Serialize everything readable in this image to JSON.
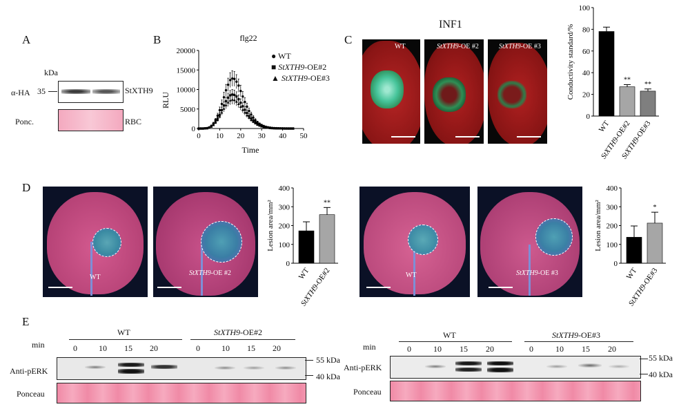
{
  "panels": {
    "A": "A",
    "B": "B",
    "C": "C",
    "D": "D",
    "E": "E"
  },
  "panelA": {
    "kda_label": "kDa",
    "marker": "35",
    "row1_label": "α-HA",
    "row1_target": "StXTH9",
    "row2_label": "Ponc.",
    "row2_target": "RBC"
  },
  "panelC": {
    "title": "INF1",
    "photo_labels": [
      {
        "gene": "",
        "suffix": "WT"
      },
      {
        "gene": "StXTH9",
        "suffix": "-OE #2"
      },
      {
        "gene": "StXTH9",
        "suffix": "-OE #3"
      }
    ]
  },
  "panelD": {
    "leaf_labels": [
      {
        "gene": "",
        "suffix": "WT"
      },
      {
        "gene": "StXTH9",
        "suffix": "-OE #2"
      },
      {
        "gene": "",
        "suffix": "WT"
      },
      {
        "gene": "StXTH9",
        "suffix": "-OE #3"
      }
    ]
  },
  "panelE": {
    "left": {
      "group1": "WT",
      "group2_gene": "StXTH9",
      "group2_suffix": "-OE#2",
      "min_label": "min",
      "times": [
        "0",
        "10",
        "15",
        "20",
        "0",
        "10",
        "15",
        "20"
      ],
      "row1": "Anti-pERK",
      "row2": "Ponceau",
      "marker_hi": "55 kDa",
      "marker_lo": "40 kDa"
    },
    "right": {
      "group1": "WT",
      "group2_gene": "StXTH9",
      "group2_suffix": "-OE#3",
      "min_label": "min",
      "times": [
        "0",
        "10",
        "15",
        "20",
        "0",
        "10",
        "15",
        "20"
      ],
      "row1": "Anti-pERK",
      "row2": "Ponceau",
      "marker_hi": "55 kDa",
      "marker_lo": "40 kDa"
    }
  },
  "chart_data": [
    {
      "id": "B",
      "type": "line",
      "title": "flg22",
      "xlabel": "Time",
      "ylabel": "RLU",
      "xlim": [
        0,
        50
      ],
      "ylim": [
        0,
        20000
      ],
      "xticks": [
        "0",
        "10",
        "20",
        "30",
        "40",
        "50"
      ],
      "yticks": [
        "0",
        "5000",
        "10000",
        "15000",
        "20000"
      ],
      "legend_position": "right",
      "x": [
        0,
        1,
        2,
        3,
        4,
        5,
        6,
        7,
        8,
        9,
        10,
        11,
        12,
        13,
        14,
        15,
        16,
        17,
        18,
        19,
        20,
        21,
        22,
        23,
        24,
        25,
        26,
        27,
        28,
        29,
        30,
        31,
        32,
        33,
        34,
        35,
        36,
        37,
        38,
        39,
        40,
        41,
        42,
        43,
        44,
        45
      ],
      "series": [
        {
          "name": "WT",
          "marker": "circle",
          "values": [
            0,
            0,
            0,
            50,
            100,
            300,
            700,
            1300,
            2200,
            3300,
            4700,
            6300,
            8000,
            9800,
            11200,
            12400,
            12800,
            12700,
            12000,
            11000,
            9600,
            8200,
            6800,
            5600,
            4500,
            3600,
            2800,
            2100,
            1600,
            1200,
            900,
            650,
            450,
            320,
            220,
            150,
            100,
            70,
            50,
            30,
            20,
            10,
            5,
            0,
            0,
            0
          ],
          "errors": [
            0,
            0,
            0,
            20,
            50,
            100,
            200,
            300,
            400,
            600,
            800,
            1000,
            1300,
            1500,
            1700,
            1900,
            2000,
            1900,
            1800,
            1700,
            1500,
            1300,
            1100,
            900,
            700,
            600,
            500,
            400,
            300,
            250,
            200,
            150,
            100,
            80,
            60,
            50,
            40,
            30,
            20,
            10,
            10,
            5,
            5,
            0,
            0,
            0
          ]
        },
        {
          "name": "StXTH9-OE#2",
          "name_gene": "StXTH9",
          "name_suffix": "-OE#2",
          "marker": "square",
          "values": [
            0,
            0,
            0,
            40,
            80,
            250,
            550,
            1000,
            1700,
            2500,
            3500,
            4700,
            5900,
            7000,
            7900,
            8500,
            8700,
            8600,
            8200,
            7500,
            6600,
            5700,
            4800,
            4000,
            3200,
            2600,
            2000,
            1500,
            1150,
            850,
            620,
            450,
            320,
            220,
            150,
            100,
            70,
            50,
            35,
            20,
            12,
            6,
            3,
            0,
            0,
            0
          ],
          "errors": [
            0,
            0,
            0,
            20,
            40,
            80,
            150,
            250,
            350,
            450,
            600,
            750,
            900,
            1050,
            1150,
            1250,
            1300,
            1250,
            1200,
            1100,
            1000,
            900,
            750,
            650,
            550,
            450,
            380,
            300,
            250,
            200,
            150,
            110,
            80,
            60,
            45,
            35,
            25,
            18,
            12,
            8,
            5,
            3,
            2,
            0,
            0,
            0
          ]
        },
        {
          "name": "StXTH9-OE#3",
          "name_gene": "StXTH9",
          "name_suffix": "-OE#3",
          "marker": "triangle",
          "values": [
            0,
            0,
            0,
            35,
            70,
            220,
            480,
            900,
            1500,
            2200,
            3100,
            4100,
            5100,
            6000,
            6700,
            7200,
            7400,
            7300,
            6900,
            6300,
            5600,
            4800,
            4100,
            3400,
            2800,
            2200,
            1750,
            1350,
            1000,
            750,
            550,
            400,
            280,
            190,
            130,
            90,
            60,
            40,
            28,
            18,
            10,
            5,
            2,
            0,
            0,
            0
          ],
          "errors": [
            0,
            0,
            0,
            20,
            40,
            70,
            140,
            220,
            320,
            420,
            550,
            700,
            850,
            950,
            1050,
            1150,
            1200,
            1150,
            1100,
            1000,
            900,
            800,
            700,
            600,
            500,
            420,
            350,
            280,
            220,
            180,
            140,
            100,
            75,
            55,
            40,
            30,
            22,
            15,
            10,
            7,
            4,
            2,
            1,
            0,
            0,
            0
          ]
        }
      ]
    },
    {
      "id": "C",
      "type": "bar",
      "ylabel": "Conductivity standard/%",
      "ylim": [
        0,
        100
      ],
      "yticks": [
        "0",
        "20",
        "40",
        "60",
        "80",
        "100"
      ],
      "categories": [
        "WT",
        "StXTH9-OE#2",
        "StXTH9-OE#3"
      ],
      "categories_gene": [
        "",
        "StXTH9",
        "StXTH9"
      ],
      "categories_suffix": [
        "WT",
        "-OE#2",
        "-OE#3"
      ],
      "values": [
        78,
        27,
        23
      ],
      "errors": [
        4,
        2,
        2
      ],
      "significance": [
        "",
        "**",
        "**"
      ],
      "colors": [
        "#000000",
        "#a6a6a6",
        "#7f7f7f"
      ]
    },
    {
      "id": "D1",
      "type": "bar",
      "ylabel": "Lesion area/mm²",
      "ylim": [
        0,
        400
      ],
      "yticks": [
        "0",
        "100",
        "200",
        "300",
        "400"
      ],
      "categories": [
        "WT",
        "StXTH9-OE#2"
      ],
      "categories_gene": [
        "",
        "StXTH9"
      ],
      "categories_suffix": [
        "WT",
        "-OE#2"
      ],
      "values": [
        172,
        258
      ],
      "errors": [
        48,
        38
      ],
      "significance": [
        "",
        "**"
      ],
      "colors": [
        "#000000",
        "#a6a6a6"
      ]
    },
    {
      "id": "D2",
      "type": "bar",
      "ylabel": "Lesion area/mm²",
      "ylim": [
        0,
        400
      ],
      "yticks": [
        "0",
        "100",
        "200",
        "300",
        "400"
      ],
      "categories": [
        "WT",
        "StXTH9-OE#3"
      ],
      "categories_gene": [
        "",
        "StXTH9"
      ],
      "categories_suffix": [
        "WT",
        "-OE#3"
      ],
      "values": [
        138,
        213
      ],
      "errors": [
        60,
        58
      ],
      "significance": [
        "",
        "*"
      ],
      "colors": [
        "#000000",
        "#a6a6a6"
      ]
    }
  ]
}
